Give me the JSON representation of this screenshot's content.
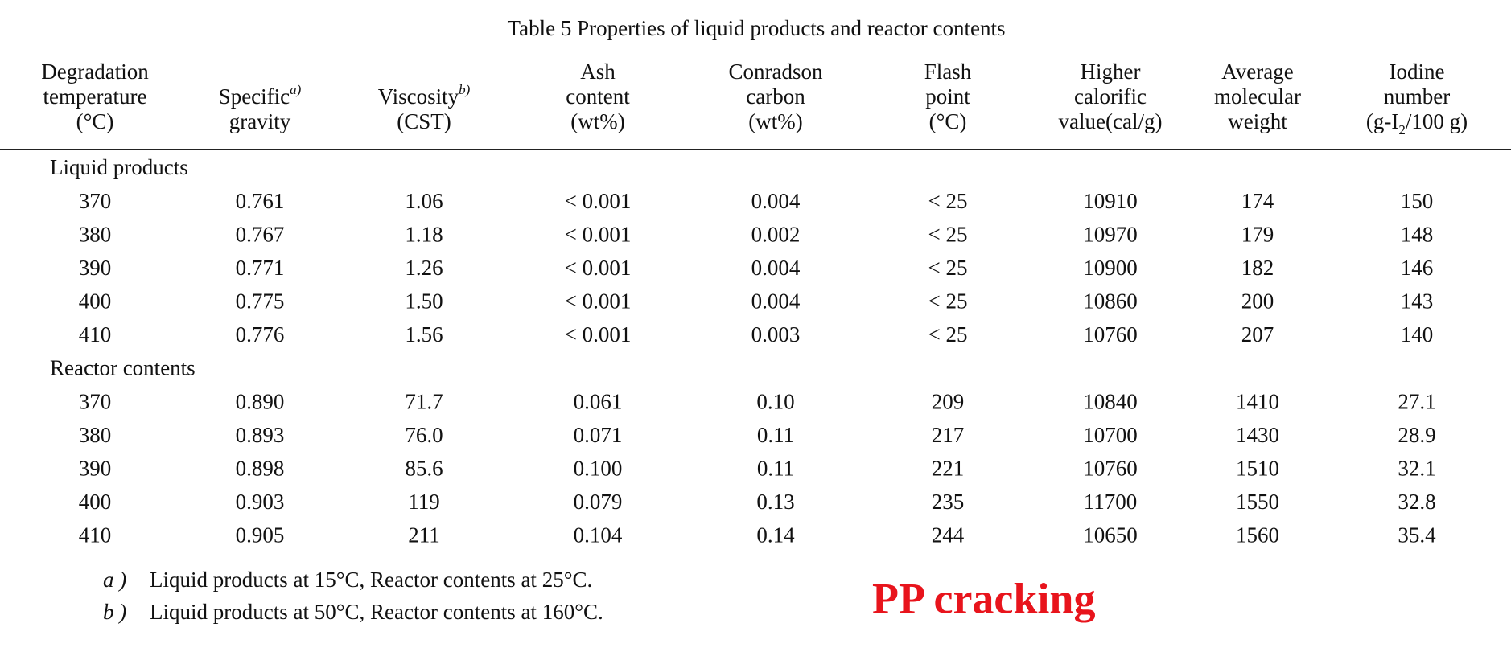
{
  "title": "Table 5  Properties of liquid products and reactor contents",
  "table": {
    "columns": [
      [
        [
          {
            "text": "Degradation"
          }
        ],
        [
          {
            "text": "temperature"
          }
        ],
        [
          {
            "text": "(°C)"
          }
        ]
      ],
      [
        [
          {
            "text": "Specific"
          },
          {
            "text": "a)",
            "style": "sup"
          }
        ],
        [
          {
            "text": "gravity"
          }
        ]
      ],
      [
        [
          {
            "text": "Viscosity"
          },
          {
            "text": "b)",
            "style": "sup"
          }
        ],
        [
          {
            "text": "(CST)"
          }
        ]
      ],
      [
        [
          {
            "text": "Ash"
          }
        ],
        [
          {
            "text": "content"
          }
        ],
        [
          {
            "text": "(wt%)"
          }
        ]
      ],
      [
        [
          {
            "text": "Conradson"
          }
        ],
        [
          {
            "text": "carbon"
          }
        ],
        [
          {
            "text": "(wt%)"
          }
        ]
      ],
      [
        [
          {
            "text": "Flash"
          }
        ],
        [
          {
            "text": "point"
          }
        ],
        [
          {
            "text": "(°C)"
          }
        ]
      ],
      [
        [
          {
            "text": "Higher"
          }
        ],
        [
          {
            "text": "calorific"
          }
        ],
        [
          {
            "text": "value(cal/g)"
          }
        ]
      ],
      [
        [
          {
            "text": "Average"
          }
        ],
        [
          {
            "text": "molecular"
          }
        ],
        [
          {
            "text": "weight"
          }
        ]
      ],
      [
        [
          {
            "text": "Iodine"
          }
        ],
        [
          {
            "text": "number"
          }
        ],
        [
          {
            "text": "(g-I"
          },
          {
            "text": "2",
            "style": "sub"
          },
          {
            "text": "/100 g)"
          }
        ]
      ]
    ],
    "groups": [
      {
        "label": "Liquid products",
        "rows": [
          [
            "370",
            "0.761",
            "1.06",
            "< 0.001",
            "0.004",
            "< 25",
            "10910",
            "174",
            "150"
          ],
          [
            "380",
            "0.767",
            "1.18",
            "< 0.001",
            "0.002",
            "< 25",
            "10970",
            "179",
            "148"
          ],
          [
            "390",
            "0.771",
            "1.26",
            "< 0.001",
            "0.004",
            "< 25",
            "10900",
            "182",
            "146"
          ],
          [
            "400",
            "0.775",
            "1.50",
            "< 0.001",
            "0.004",
            "< 25",
            "10860",
            "200",
            "143"
          ],
          [
            "410",
            "0.776",
            "1.56",
            "< 0.001",
            "0.003",
            "< 25",
            "10760",
            "207",
            "140"
          ]
        ]
      },
      {
        "label": "Reactor contents",
        "rows": [
          [
            "370",
            "0.890",
            "71.7",
            "0.061",
            "0.10",
            "209",
            "10840",
            "1410",
            "27.1"
          ],
          [
            "380",
            "0.893",
            "76.0",
            "0.071",
            "0.11",
            "217",
            "10700",
            "1430",
            "28.9"
          ],
          [
            "390",
            "0.898",
            "85.6",
            "0.100",
            "0.11",
            "221",
            "10760",
            "1510",
            "32.1"
          ],
          [
            "400",
            "0.903",
            "119",
            "0.079",
            "0.13",
            "235",
            "11700",
            "1550",
            "32.8"
          ],
          [
            "410",
            "0.905",
            "211",
            "0.104",
            "0.14",
            "244",
            "10650",
            "1560",
            "35.4"
          ]
        ]
      }
    ]
  },
  "footnotes": [
    {
      "mark": "a )",
      "text": "Liquid products at 15°C, Reactor contents at 25°C."
    },
    {
      "mark": "b )",
      "text": "Liquid products at 50°C, Reactor contents at 160°C."
    }
  ],
  "annotation": "PP cracking"
}
